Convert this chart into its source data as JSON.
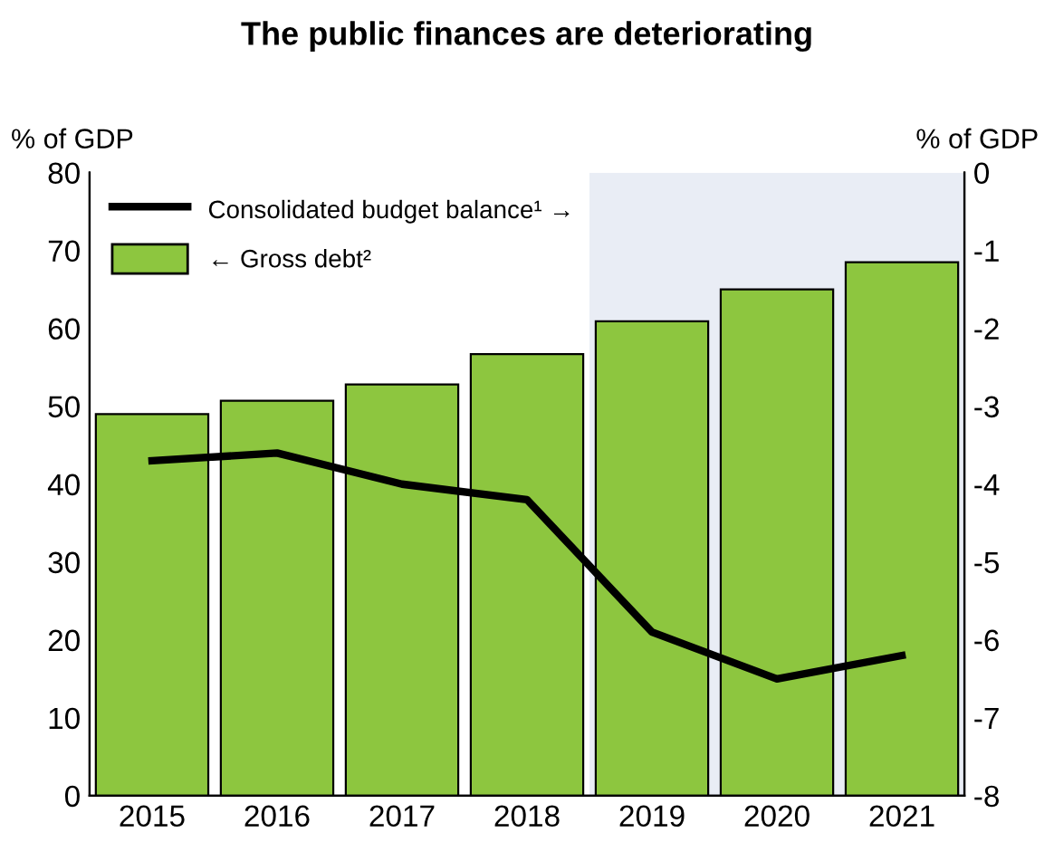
{
  "chart_data": {
    "type": "bar",
    "title": "The public finances are deteriorating",
    "ylabel": "% of GDP",
    "y2label": "% of GDP",
    "categories": [
      "2015",
      "2016",
      "2017",
      "2018",
      "2019",
      "2020",
      "2021"
    ],
    "series": [
      {
        "name": "← Gross debt²",
        "color": "#8dc63f",
        "values": [
          49,
          50.7,
          52.8,
          56.7,
          60.9,
          65,
          68.5
        ]
      },
      {
        "name": "Consolidated budget balance¹ →",
        "type": "line",
        "axis": "y2",
        "color": "#000000",
        "values": [
          -3.7,
          -3.6,
          -4.0,
          -4.2,
          -5.9,
          -6.5,
          -6.2
        ]
      }
    ],
    "ylim": [
      0,
      80
    ],
    "yticks": [
      0,
      10,
      20,
      30,
      40,
      50,
      60,
      70,
      80
    ],
    "y2lim": [
      -8,
      0
    ],
    "y2ticks": [
      -8,
      -7,
      -6,
      -5,
      -4,
      -3,
      -2,
      -1,
      0
    ],
    "bands": [
      {
        "axis": "x",
        "from": "2019",
        "to": "2021",
        "color": "#e9edf5"
      }
    ],
    "legend": "top left",
    "grid": false
  }
}
